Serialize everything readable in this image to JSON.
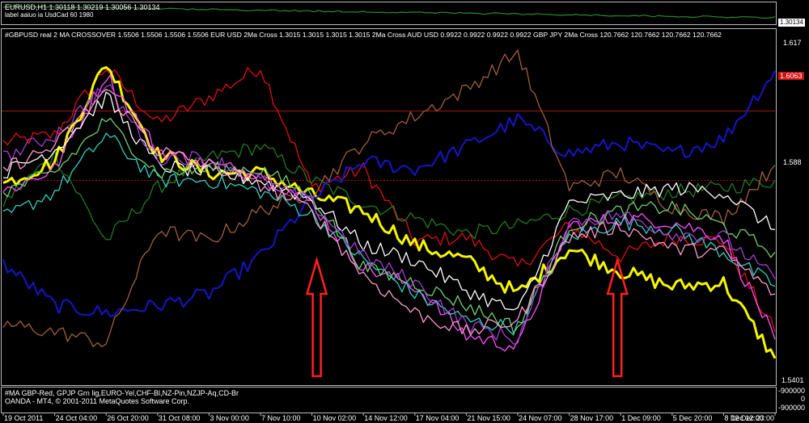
{
  "top_panel": {
    "title": "EURUSD,H1  1.30118 1.30219 1.30056 1.30134",
    "sub": "label aaiuo ia UsdCad 60 1980",
    "price_label": "1.30134"
  },
  "main_panel": {
    "header": "#GBPUSD real 2 MA CROSSOVER 1.5506 1.5506 1.5506 1.5506  EUR USD 2Ma Cross  1.3015 1.3015 1.3015 1.3015  2Ma Cross AUD USD 0.9922 0.9922 0.9922 0.9922  GBP JPY 2Ma Cross  120.7662 120.7662 120.7662 120.7662",
    "price_labels": [
      "1.617",
      "1.6063",
      "1.588",
      "1.5401"
    ]
  },
  "bottom_panel": {
    "line1": "#MA  GBP-Red, GPJP Grn lig,EURO-Yel,CHF-Bl,NZ-Pin,NZJP-Aq,CD-Br",
    "line2": "OANDA - MT4, © 2001-2011 MetaQuotes Software Corp.",
    "labels": [
      "-900000",
      "0",
      "-900000"
    ]
  },
  "colors": {
    "GBP": "#e01010",
    "GPJP": "#1f7a1f",
    "EURO": "#f5f500",
    "CHF": "#1515c8",
    "NZ": "#ff50ff",
    "NZJP": "#30d0c0",
    "CD": "#a0603a",
    "white": "#ffffff",
    "lightgreen": "#70d070",
    "purple": "#a040d0",
    "pink": "#ff9ad0",
    "top_line": "#2a8a2a"
  },
  "chart_data": {
    "type": "line",
    "x": [
      "19 Oct 2011",
      "24 Oct 04:00",
      "26 Oct 20:00",
      "31 Oct 08:00",
      "3 Nov 00:00",
      "7 Nov 10:00",
      "10 Nov 02:00",
      "14 Nov 12:00",
      "17 Nov 04:00",
      "21 Nov 15:00",
      "24 Nov 07:00",
      "28 Nov 17:00",
      "1 Dec 09:00",
      "5 Dec 20:00",
      "8 Dec 12:00",
      "12 Dec 23:00"
    ],
    "ylim": [
      1.535,
      1.625
    ],
    "hlines": [
      1.6063,
      1.588
    ],
    "series": [
      {
        "key": "GBP",
        "values": [
          1.598,
          1.6,
          1.618,
          1.603,
          1.61,
          1.618,
          1.586,
          1.591,
          1.572,
          1.573,
          1.565,
          1.576,
          1.568,
          1.573,
          1.572,
          1.548
        ]
      },
      {
        "key": "GPJP",
        "values": [
          1.582,
          1.595,
          1.572,
          1.586,
          1.594,
          1.597,
          1.588,
          1.582,
          1.578,
          1.574,
          1.576,
          1.58,
          1.583,
          1.585,
          1.586,
          1.588
        ]
      },
      {
        "key": "EURO",
        "values": [
          1.587,
          1.593,
          1.619,
          1.595,
          1.59,
          1.59,
          1.584,
          1.58,
          1.571,
          1.567,
          1.558,
          1.57,
          1.564,
          1.56,
          1.561,
          1.541
        ]
      },
      {
        "key": "CHF",
        "values": [
          1.566,
          1.555,
          1.553,
          1.555,
          1.558,
          1.568,
          1.583,
          1.593,
          1.591,
          1.597,
          1.604,
          1.595,
          1.598,
          1.595,
          1.599,
          1.617
        ]
      },
      {
        "key": "NZ",
        "values": [
          1.585,
          1.591,
          1.616,
          1.596,
          1.592,
          1.59,
          1.582,
          1.565,
          1.56,
          1.547,
          1.544,
          1.576,
          1.578,
          1.577,
          1.573,
          1.546
        ]
      },
      {
        "key": "NZJP",
        "values": [
          1.578,
          1.585,
          1.6,
          1.588,
          1.588,
          1.585,
          1.579,
          1.567,
          1.558,
          1.551,
          1.549,
          1.573,
          1.577,
          1.575,
          1.569,
          1.56
        ]
      },
      {
        "key": "CD",
        "values": [
          1.55,
          1.548,
          1.545,
          1.575,
          1.572,
          1.58,
          1.585,
          1.598,
          1.605,
          1.612,
          1.622,
          1.586,
          1.59,
          1.581,
          1.578,
          1.592
        ]
      },
      {
        "key": "white",
        "values": [
          1.59,
          1.596,
          1.61,
          1.592,
          1.59,
          1.588,
          1.583,
          1.571,
          1.567,
          1.559,
          1.553,
          1.582,
          1.584,
          1.586,
          1.585,
          1.575
        ]
      },
      {
        "key": "lightgreen",
        "values": [
          1.585,
          1.59,
          1.604,
          1.59,
          1.591,
          1.591,
          1.584,
          1.565,
          1.561,
          1.555,
          1.549,
          1.576,
          1.58,
          1.581,
          1.576,
          1.569
        ]
      },
      {
        "key": "purple",
        "values": [
          1.594,
          1.6,
          1.613,
          1.594,
          1.594,
          1.588,
          1.582,
          1.568,
          1.561,
          1.55,
          1.546,
          1.577,
          1.579,
          1.574,
          1.573,
          1.562
        ]
      },
      {
        "key": "pink",
        "values": [
          1.591,
          1.597,
          1.612,
          1.596,
          1.592,
          1.587,
          1.58,
          1.563,
          1.553,
          1.548,
          1.551,
          1.573,
          1.576,
          1.57,
          1.569,
          1.558
        ]
      }
    ],
    "annotations": [
      {
        "type": "arrow-up",
        "color": "#ff2020",
        "x": "10 Nov 02:00"
      },
      {
        "type": "arrow-up",
        "color": "#ff2020",
        "x": "1 Dec 09:00"
      }
    ]
  }
}
